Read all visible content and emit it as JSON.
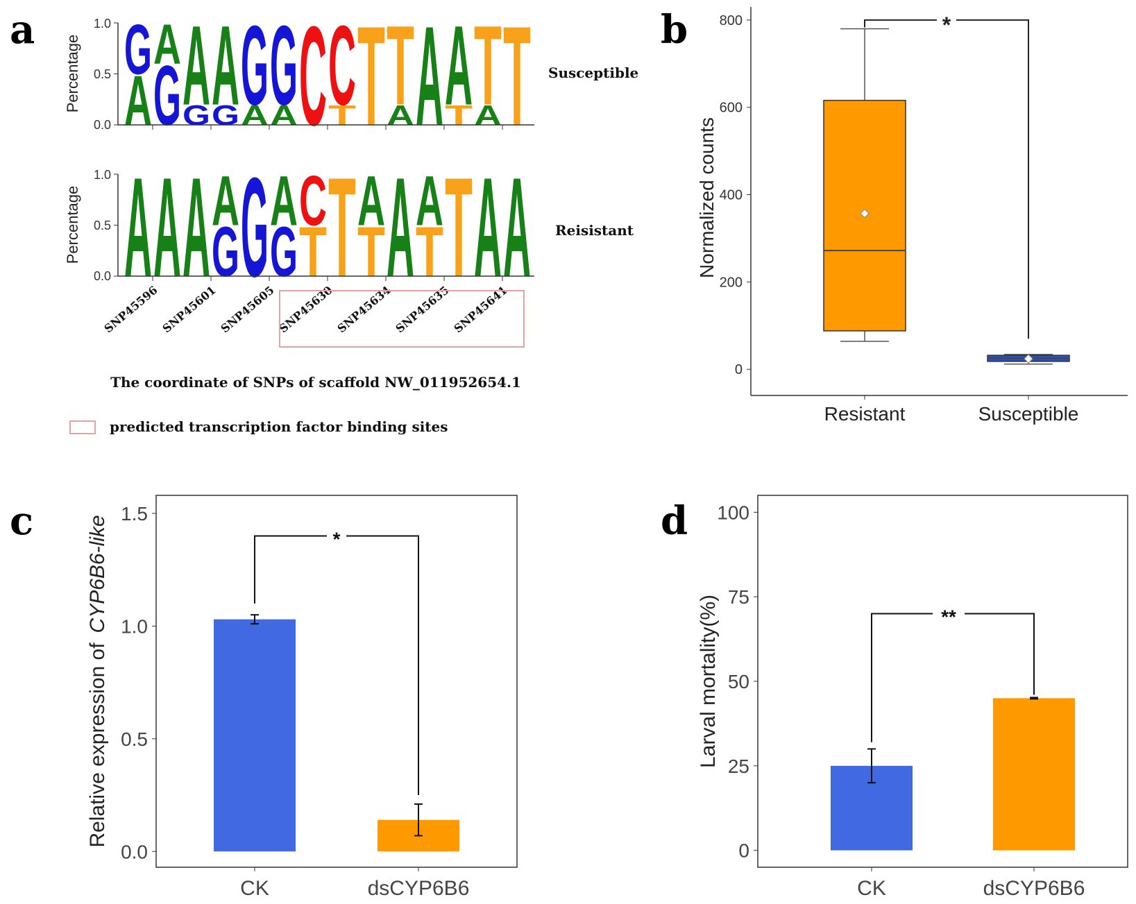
{
  "chart_data": [
    {
      "panel": "a",
      "type": "sequence-logo",
      "xlabel": "The coordinate of SNPs of scaffold NW_011952654.1",
      "ylabel": "Percentage",
      "ylim": [
        0,
        1
      ],
      "yticks": [
        "0.0",
        "0.5",
        "1.0"
      ],
      "positions": [
        "SNP45596",
        "SNP45601",
        "SNP45605",
        "SNP45630",
        "SNP45634",
        "SNP45635",
        "SNP45641"
      ],
      "highlighted_positions": [
        "SNP45630",
        "SNP45634",
        "SNP45635",
        "SNP45641"
      ],
      "legend_label": "predicted transcription factor binding sites",
      "nucleotide_colors": {
        "A": "#178017",
        "G": "#1515d6",
        "C": "#ee1111",
        "T": "#f7a21a"
      },
      "groups": [
        {
          "name": "Susceptible",
          "columns": [
            [
              {
                "b": "A",
                "p": 0.5
              },
              {
                "b": "G",
                "p": 0.5
              }
            ],
            [
              {
                "b": "G",
                "p": 0.6
              },
              {
                "b": "A",
                "p": 0.4
              }
            ],
            [
              {
                "b": "G",
                "p": 0.2
              },
              {
                "b": "A",
                "p": 0.8
              }
            ],
            [
              {
                "b": "G",
                "p": 0.2
              },
              {
                "b": "A",
                "p": 0.8
              }
            ],
            [
              {
                "b": "A",
                "p": 0.2
              },
              {
                "b": "G",
                "p": 0.8
              }
            ],
            [
              {
                "b": "A",
                "p": 0.2
              },
              {
                "b": "G",
                "p": 0.8
              }
            ],
            [
              {
                "b": "C",
                "p": 1.0
              }
            ],
            [
              {
                "b": "T",
                "p": 0.2
              },
              {
                "b": "C",
                "p": 0.8
              }
            ],
            [
              {
                "b": "T",
                "p": 1.0
              }
            ],
            [
              {
                "b": "A",
                "p": 0.2
              },
              {
                "b": "T",
                "p": 0.8
              }
            ],
            [
              {
                "b": "A",
                "p": 1.0
              }
            ],
            [
              {
                "b": "T",
                "p": 0.2
              },
              {
                "b": "A",
                "p": 0.8
              }
            ],
            [
              {
                "b": "A",
                "p": 0.2
              },
              {
                "b": "T",
                "p": 0.8
              }
            ],
            [
              {
                "b": "T",
                "p": 1.0
              }
            ]
          ]
        },
        {
          "name": "Reisistant",
          "columns": [
            [
              {
                "b": "A",
                "p": 1.0
              }
            ],
            [
              {
                "b": "A",
                "p": 1.0
              }
            ],
            [
              {
                "b": "A",
                "p": 1.0
              }
            ],
            [
              {
                "b": "G",
                "p": 0.5
              },
              {
                "b": "A",
                "p": 0.5
              }
            ],
            [
              {
                "b": "G",
                "p": 1.0
              }
            ],
            [
              {
                "b": "G",
                "p": 0.5
              },
              {
                "b": "A",
                "p": 0.5
              }
            ],
            [
              {
                "b": "T",
                "p": 0.5
              },
              {
                "b": "C",
                "p": 0.5
              }
            ],
            [
              {
                "b": "T",
                "p": 1.0
              }
            ],
            [
              {
                "b": "T",
                "p": 0.5
              },
              {
                "b": "A",
                "p": 0.5
              }
            ],
            [
              {
                "b": "A",
                "p": 1.0
              }
            ],
            [
              {
                "b": "T",
                "p": 0.5
              },
              {
                "b": "A",
                "p": 0.5
              }
            ],
            [
              {
                "b": "T",
                "p": 1.0
              }
            ],
            [
              {
                "b": "A",
                "p": 1.0
              }
            ],
            [
              {
                "b": "A",
                "p": 1.0
              }
            ]
          ]
        }
      ]
    },
    {
      "panel": "b",
      "type": "box",
      "ylabel": "Normalized counts",
      "ylim": [
        -60,
        830
      ],
      "yticks": [
        0,
        200,
        400,
        600,
        800
      ],
      "categories": [
        "Resistant",
        "Susceptible"
      ],
      "colors": [
        "#ff9900",
        "#2850c8"
      ],
      "boxes": [
        {
          "name": "Resistant",
          "min": 64,
          "q1": 88,
          "median": 272,
          "q3": 616,
          "max": 780,
          "mean": 357
        },
        {
          "name": "Susceptible",
          "min": 12,
          "q1": 18,
          "median": 25,
          "q3": 32,
          "max": 34,
          "mean": 24
        }
      ],
      "significance": {
        "label": "*",
        "y": 800,
        "susceptible_end": 70
      }
    },
    {
      "panel": "c",
      "type": "bar",
      "ylabel_prefix": "Relative expression of",
      "ylabel_gene": "CYP6B6-like",
      "ylim": [
        -0.07,
        1.58
      ],
      "yticks": [
        "0.0",
        "0.5",
        "1.0",
        "1.5"
      ],
      "categories": [
        "CK",
        "dsCYP6B6"
      ],
      "values": [
        1.03,
        0.14
      ],
      "errors": [
        0.02,
        0.07
      ],
      "colors": [
        "#4169e1",
        "#ff9900"
      ],
      "significance": {
        "label": "*",
        "y": 1.4,
        "ends": [
          1.1,
          0.25
        ]
      }
    },
    {
      "panel": "d",
      "type": "bar",
      "ylabel": "Larval mortality(%)",
      "ylim": [
        -5,
        105
      ],
      "yticks": [
        "0",
        "25",
        "50",
        "75",
        "100"
      ],
      "categories": [
        "CK",
        "dsCYP6B6"
      ],
      "values": [
        25,
        45
      ],
      "errors": [
        5,
        0.2
      ],
      "colors": [
        "#4169e1",
        "#ff9900"
      ],
      "significance": {
        "label": "**",
        "y": 70,
        "ends": [
          32,
          46
        ]
      }
    }
  ],
  "panel_labels": [
    "a",
    "b",
    "c",
    "d"
  ]
}
